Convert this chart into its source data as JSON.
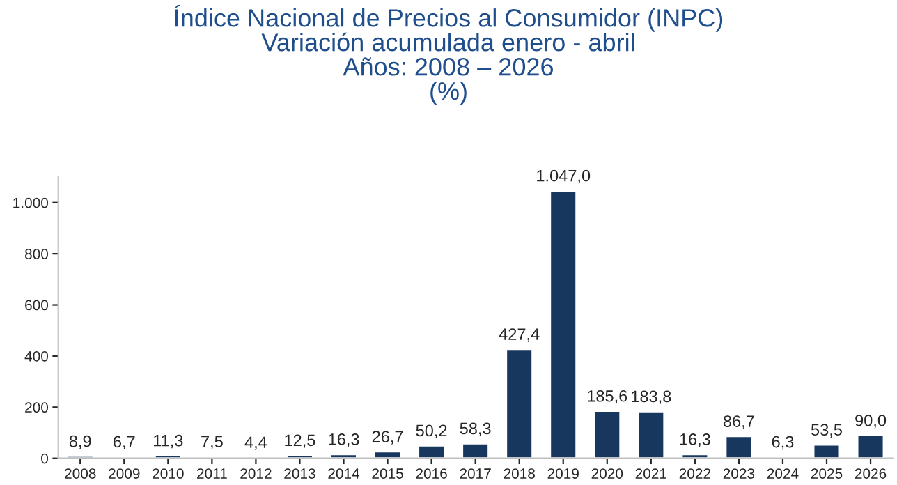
{
  "chart_data": {
    "type": "bar",
    "title": "Índice Nacional de Precios al Consumidor (INPC)\nVariación acumulada enero - abril\nAños: 2008 – 2026\n(%)",
    "categories": [
      "2008",
      "2009",
      "2010",
      "2011",
      "2012",
      "2013",
      "2014",
      "2015",
      "2016",
      "2017",
      "2018",
      "2019",
      "2020",
      "2021",
      "2022",
      "2023",
      "2024",
      "2025",
      "2026"
    ],
    "values": [
      8.9,
      6.7,
      11.3,
      7.5,
      4.4,
      12.5,
      16.3,
      26.7,
      50.2,
      58.3,
      427.4,
      1047.0,
      185.6,
      183.8,
      16.3,
      86.7,
      6.3,
      53.5,
      90.0
    ],
    "value_labels": [
      "8,9",
      "6,7",
      "11,3",
      "7,5",
      "4,4",
      "12,5",
      "16,3",
      "26,7",
      "50,2",
      "58,3",
      "427,4",
      "1.047,0",
      "185,6",
      "183,8",
      "16,3",
      "86,7",
      "6,3",
      "53,5",
      "90,0"
    ],
    "color": "#17375e",
    "ylim": [
      0,
      1100
    ],
    "yticks": [
      0,
      200,
      400,
      600,
      800,
      {
        "value": 1000,
        "label": "1.000"
      }
    ],
    "grid": false
  }
}
